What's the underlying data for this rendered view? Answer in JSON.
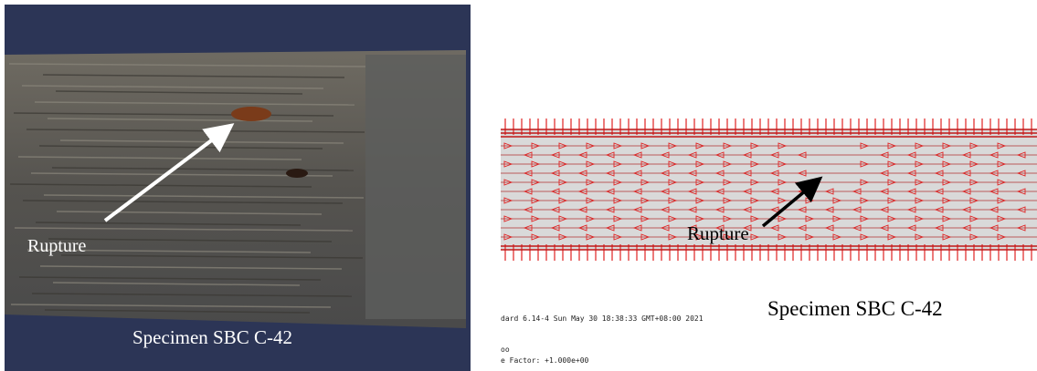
{
  "left_panel": {
    "label_rupture": "Rupture",
    "caption": "Specimen SBC C-42"
  },
  "right_panel": {
    "label_rupture": "Rupture",
    "caption": "Specimen SBC C-42",
    "status_line": "dard 6.14-4    Sun May 30 18:38:33 GMT+08:00 2021",
    "line2": "oo",
    "scale_factor": "e Factor: +1.000e+00"
  }
}
